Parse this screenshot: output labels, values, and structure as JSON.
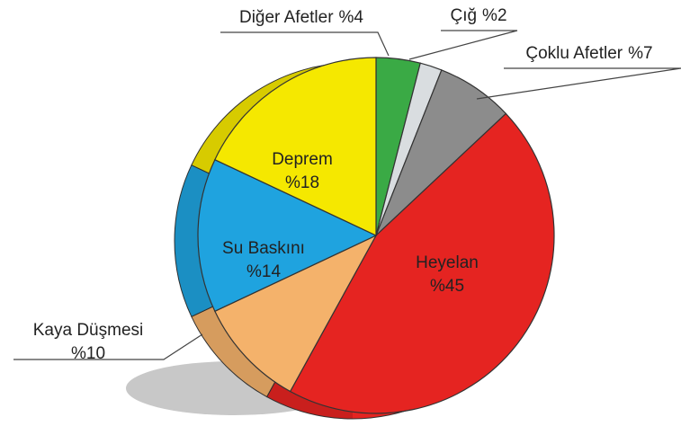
{
  "chart_data": {
    "type": "pie",
    "categories": [
      "Diğer Afetler",
      "Çığ",
      "Çoklu Afetler",
      "Heyelan",
      "Kaya Düşmesi",
      "Su Baskını",
      "Deprem"
    ],
    "values": [
      4,
      2,
      7,
      45,
      10,
      14,
      18
    ],
    "value_labels": [
      "%4",
      "%2",
      "%7",
      "%45",
      "%10",
      "%14",
      "%18"
    ],
    "colors": [
      "#3aaa45",
      "#d9dde0",
      "#8c8c8c",
      "#e52421",
      "#f4b26b",
      "#1fa3df",
      "#f5e800"
    ]
  }
}
